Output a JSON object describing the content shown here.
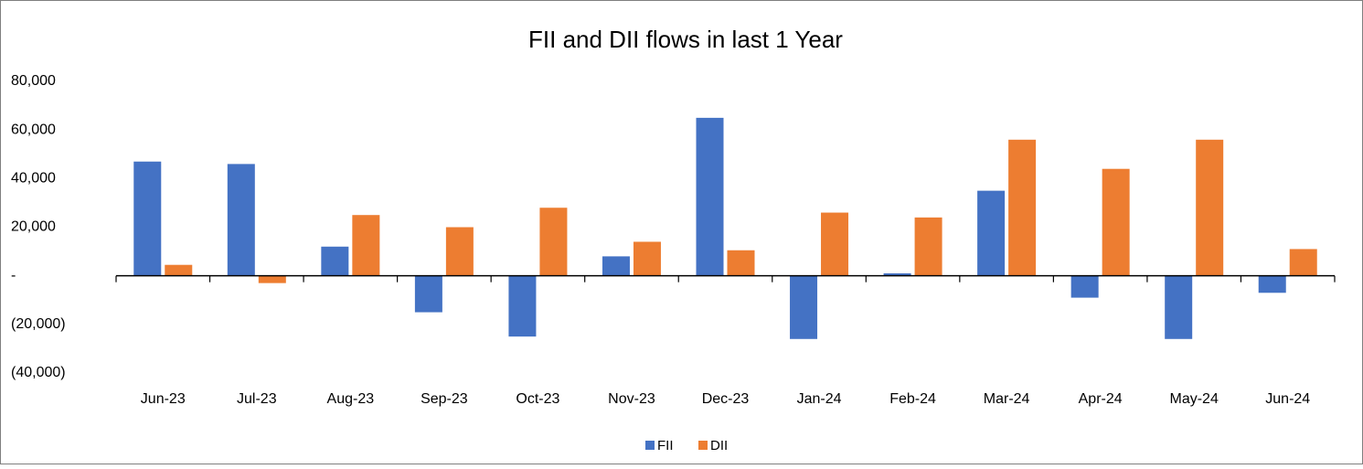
{
  "chart_data": {
    "type": "bar",
    "title": "FII and DII flows in last 1 Year",
    "categories": [
      "Jun-23",
      "Jul-23",
      "Aug-23",
      "Sep-23",
      "Oct-23",
      "Nov-23",
      "Dec-23",
      "Jan-24",
      "Feb-24",
      "Mar-24",
      "Apr-24",
      "May-24",
      "Jun-24"
    ],
    "series": [
      {
        "name": "FII",
        "color": "#4472c4",
        "values": [
          47000,
          46000,
          12000,
          -15000,
          -25000,
          8000,
          65000,
          -26000,
          1000,
          35000,
          -9000,
          -26000,
          -7000
        ]
      },
      {
        "name": "DII",
        "color": "#ed7d31",
        "values": [
          4500,
          -3000,
          25000,
          20000,
          28000,
          14000,
          10500,
          26000,
          24000,
          56000,
          44000,
          56000,
          11000
        ]
      }
    ],
    "ylim": [
      -40000,
      80000
    ],
    "yticks": [
      {
        "value": -40000,
        "label": "(40,000)"
      },
      {
        "value": -20000,
        "label": "(20,000)"
      },
      {
        "value": 0,
        "label": "-"
      },
      {
        "value": 20000,
        "label": "20,000"
      },
      {
        "value": 40000,
        "label": "40,000"
      },
      {
        "value": 60000,
        "label": "60,000"
      },
      {
        "value": 80000,
        "label": "80,000"
      }
    ],
    "grid": false,
    "legend": "bottom"
  }
}
